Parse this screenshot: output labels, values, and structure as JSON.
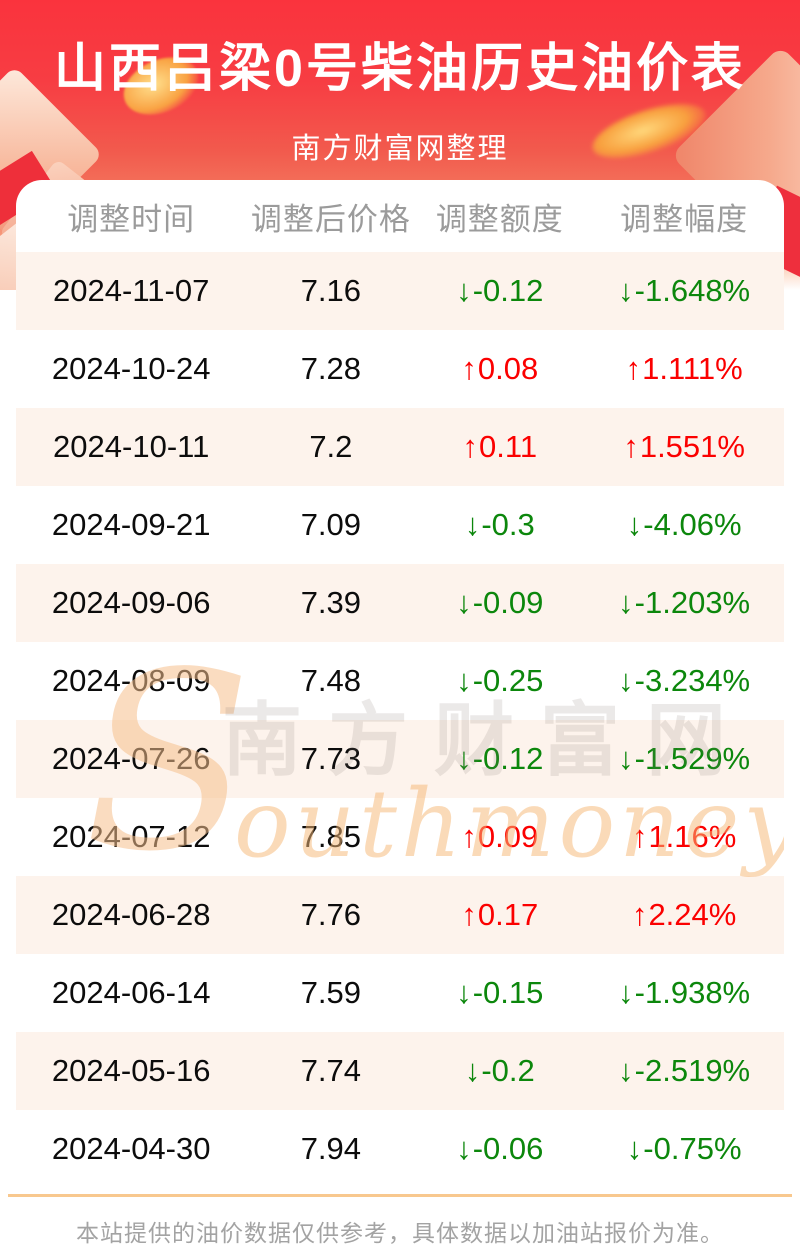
{
  "header": {
    "title": "山西吕梁0号柴油历史油价表",
    "subtitle": "南方财富网整理"
  },
  "chart_data": {
    "type": "table",
    "columns": [
      "调整时间",
      "调整后价格",
      "调整额度",
      "调整幅度"
    ],
    "rows": [
      {
        "date": "2024-11-07",
        "price": "7.16",
        "change": "-0.12",
        "percent": "-1.648%",
        "direction": "down"
      },
      {
        "date": "2024-10-24",
        "price": "7.28",
        "change": "0.08",
        "percent": "1.111%",
        "direction": "up"
      },
      {
        "date": "2024-10-11",
        "price": "7.2",
        "change": "0.11",
        "percent": "1.551%",
        "direction": "up"
      },
      {
        "date": "2024-09-21",
        "price": "7.09",
        "change": "-0.3",
        "percent": "-4.06%",
        "direction": "down"
      },
      {
        "date": "2024-09-06",
        "price": "7.39",
        "change": "-0.09",
        "percent": "-1.203%",
        "direction": "down"
      },
      {
        "date": "2024-08-09",
        "price": "7.48",
        "change": "-0.25",
        "percent": "-3.234%",
        "direction": "down"
      },
      {
        "date": "2024-07-26",
        "price": "7.73",
        "change": "-0.12",
        "percent": "-1.529%",
        "direction": "down"
      },
      {
        "date": "2024-07-12",
        "price": "7.85",
        "change": "0.09",
        "percent": "1.16%",
        "direction": "up"
      },
      {
        "date": "2024-06-28",
        "price": "7.76",
        "change": "0.17",
        "percent": "2.24%",
        "direction": "up"
      },
      {
        "date": "2024-06-14",
        "price": "7.59",
        "change": "-0.15",
        "percent": "-1.938%",
        "direction": "down"
      },
      {
        "date": "2024-05-16",
        "price": "7.74",
        "change": "-0.2",
        "percent": "-2.519%",
        "direction": "down"
      },
      {
        "date": "2024-04-30",
        "price": "7.94",
        "change": "-0.06",
        "percent": "-0.75%",
        "direction": "down"
      }
    ]
  },
  "icons": {
    "up_arrow": "↑",
    "down_arrow": "↓"
  },
  "watermark": {
    "s": "S",
    "cn": "南方财富网",
    "en": "outhmoney.com"
  },
  "footer": {
    "note": "本站提供的油价数据仅供参考，具体数据以加油站报价为准。"
  },
  "colors": {
    "up": "#fb0000",
    "down": "#0c870c",
    "hero_red": "#fa333d",
    "row_alt_bg": "#fdf3ec",
    "header_text": "#9b9b9b",
    "footer_line": "#f8c88e"
  }
}
